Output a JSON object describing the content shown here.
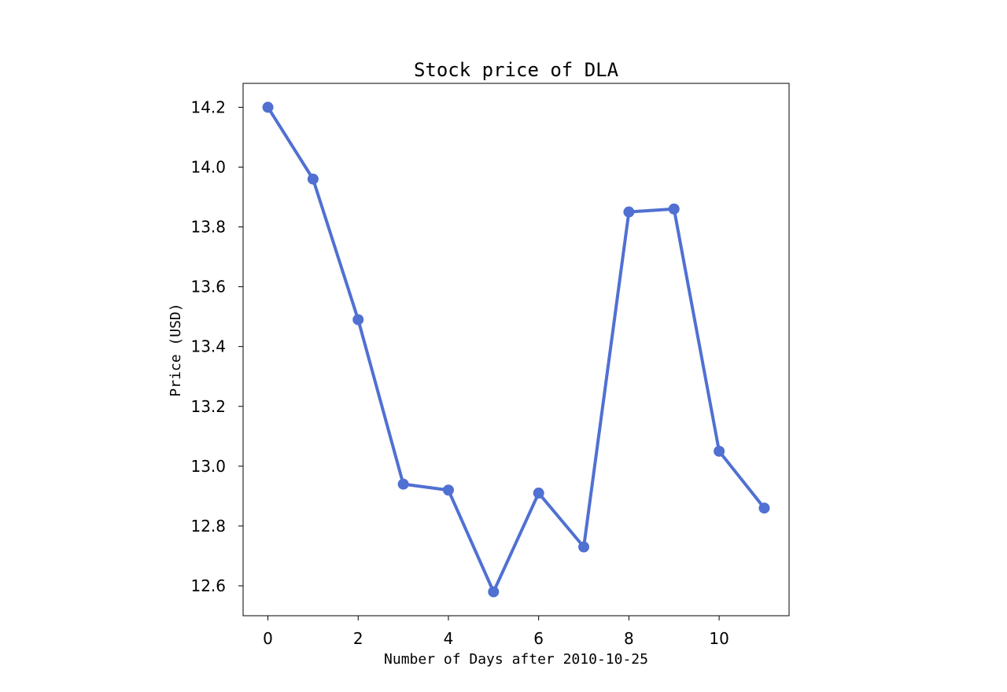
{
  "chart_data": {
    "type": "line",
    "title": "Stock price of DLA",
    "xlabel": "Number of Days after 2010-10-25",
    "ylabel": "Price (USD)",
    "x": [
      0,
      1,
      2,
      3,
      4,
      5,
      6,
      7,
      8,
      9,
      10,
      11
    ],
    "series": [
      {
        "values": [
          14.2,
          13.96,
          13.49,
          12.94,
          12.92,
          12.58,
          12.91,
          12.73,
          13.85,
          13.86,
          13.05,
          12.86
        ],
        "color": "#5070d2"
      }
    ],
    "xticks": [
      0,
      2,
      4,
      6,
      8,
      10
    ],
    "xtick_labels": [
      "0",
      "2",
      "4",
      "6",
      "8",
      "10"
    ],
    "yticks": [
      12.6,
      12.8,
      13.0,
      13.2,
      13.4,
      13.6,
      13.8,
      14.0,
      14.2
    ],
    "ytick_labels": [
      "12.6",
      "12.8",
      "13.0",
      "13.2",
      "13.4",
      "13.6",
      "13.8",
      "14.0",
      "14.2"
    ],
    "xlim": [
      -0.55,
      11.55
    ],
    "ylim": [
      12.5,
      14.28
    ],
    "grid": false,
    "legend": "none"
  }
}
